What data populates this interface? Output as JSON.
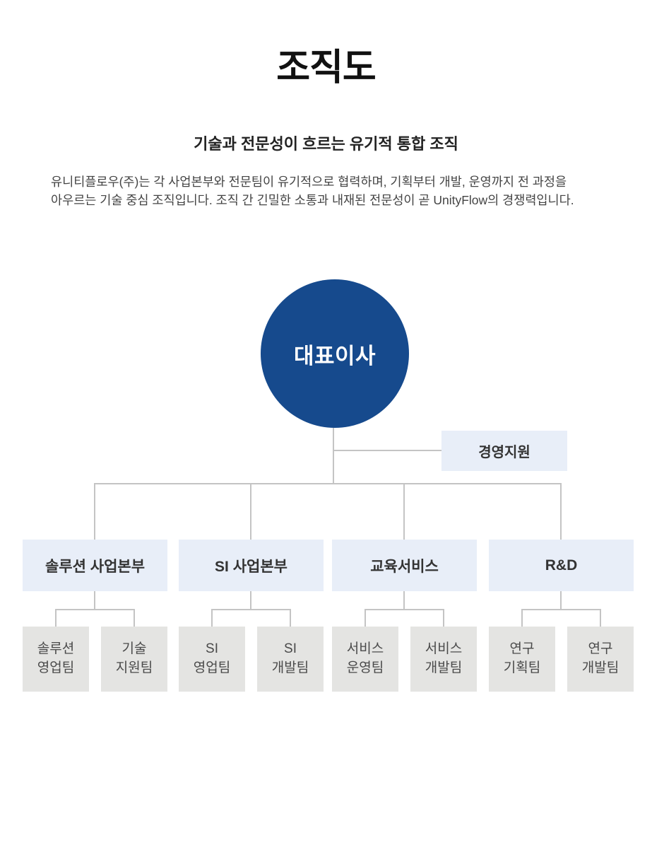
{
  "page": {
    "title": "조직도",
    "subtitle": "기술과 전문성이 흐르는 유기적 통합 조직",
    "description": "유니티플로우(주)는 각 사업본부와 전문팀이 유기적으로 협력하며, 기획부터 개발, 운영까지 전 과정을 아우르는 기술 중심 조직입니다. 조직 간 긴밀한 소통과 내재된 전문성이 곧 UnityFlow의 경쟁력입니다."
  },
  "org": {
    "ceo": {
      "label": "대표이사"
    },
    "staff": {
      "label": "경영지원"
    },
    "columns": [
      {
        "dept": {
          "label": "솔루션 사업본부"
        },
        "teams": [
          {
            "line1": "솔루션",
            "line2": "영업팀"
          },
          {
            "line1": "기술",
            "line2": "지원팀"
          }
        ]
      },
      {
        "dept": {
          "label": "SI 사업본부"
        },
        "teams": [
          {
            "line1": "SI",
            "line2": "영업팀"
          },
          {
            "line1": "SI",
            "line2": "개발팀"
          }
        ]
      },
      {
        "dept": {
          "label": "교육서비스"
        },
        "teams": [
          {
            "line1": "서비스",
            "line2": "운영팀"
          },
          {
            "line1": "서비스",
            "line2": "개발팀"
          }
        ]
      },
      {
        "dept": {
          "label": "R&D"
        },
        "teams": [
          {
            "line1": "연구",
            "line2": "기획팀"
          },
          {
            "line1": "연구",
            "line2": "개발팀"
          }
        ]
      }
    ]
  },
  "colors": {
    "ceo_circle": "#164a8d",
    "dept_box": "#e8eef8",
    "team_box": "#e4e4e2",
    "connector": "#c4c4c4"
  }
}
